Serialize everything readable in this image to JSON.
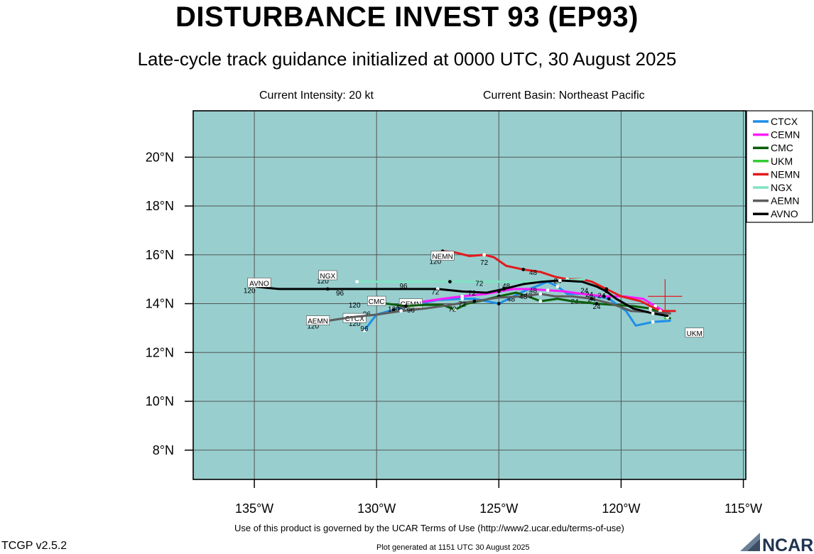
{
  "header": {
    "title": "DISTURBANCE INVEST 93 (EP93)",
    "subtitle": "Late-cycle track guidance initialized at 0000 UTC, 30 August 2025",
    "intensity": "Current Intensity: 20 kt",
    "basin": "Current Basin: Northeast Pacific"
  },
  "footer": {
    "terms": "Use of this product is governed by the UCAR Terms of Use (http://www2.ucar.edu/terms-of-use)",
    "version": "TCGP v2.5.2",
    "generated": "Plot generated at 1151 UTC   30 August 2025",
    "logo": "NCAR"
  },
  "colors": {
    "ocean": "#98cece",
    "grid": "#555555",
    "storm_marker": "#e31a1c"
  },
  "chart_data": {
    "type": "line",
    "x_axis": {
      "range": [
        -137.5,
        -114.9
      ],
      "ticks": [
        -135,
        -130,
        -125,
        -120,
        -115
      ],
      "tick_labels": [
        "135°W",
        "130°W",
        "125°W",
        "120°W",
        "115°W"
      ]
    },
    "y_axis": {
      "range": [
        6.8,
        21.9
      ],
      "ticks": [
        8,
        10,
        12,
        14,
        16,
        18,
        20
      ],
      "tick_labels": [
        "8°N",
        "10°N",
        "12°N",
        "14°N",
        "16°N",
        "18°N",
        "20°N"
      ]
    },
    "grid": true,
    "legend_position": "top-right",
    "current_position": {
      "lon": -118.2,
      "lat": 14.3
    },
    "series": [
      {
        "name": "CTCX",
        "color": "#1e8ee8",
        "label_lon": -130.9,
        "label_lat": 13.4,
        "points": [
          [
            -118.0,
            13.3
          ],
          [
            -118.7,
            13.25
          ],
          [
            -119.4,
            13.1
          ],
          [
            -119.8,
            13.7
          ],
          [
            -120.5,
            14.2
          ],
          [
            -121.5,
            14.4
          ],
          [
            -122.2,
            14.4
          ],
          [
            -122.6,
            14.7
          ],
          [
            -123.0,
            14.9
          ],
          [
            -124.0,
            14.5
          ],
          [
            -125.0,
            14.0
          ],
          [
            -125.5,
            14.1
          ],
          [
            -126.0,
            14.2
          ],
          [
            -126.5,
            14.2
          ],
          [
            -127.5,
            14.15
          ],
          [
            -128.5,
            13.95
          ],
          [
            -129.3,
            13.75
          ],
          [
            -130.0,
            13.55
          ],
          [
            -130.2,
            13.3
          ],
          [
            -130.5,
            12.9
          ]
        ],
        "tau": [
          {
            "lon": -121.9,
            "lat": 14.1,
            "t": "24"
          },
          {
            "lon": -124.5,
            "lat": 14.2,
            "t": "48"
          },
          {
            "lon": -130.4,
            "lat": 13.6,
            "t": "96"
          },
          {
            "lon": -130.5,
            "lat": 13.0,
            "t": "96"
          },
          {
            "lon": -130.9,
            "lat": 13.2,
            "t": "120"
          }
        ]
      },
      {
        "name": "CEMN",
        "color": "#ff1aff",
        "label_lon": -128.6,
        "label_lat": 14.0,
        "points": [
          [
            -118.1,
            13.6
          ],
          [
            -118.6,
            13.9
          ],
          [
            -119.1,
            14.2
          ],
          [
            -119.9,
            14.3
          ],
          [
            -120.7,
            14.3
          ],
          [
            -121.6,
            14.4
          ],
          [
            -122.3,
            14.5
          ],
          [
            -123.0,
            14.55
          ],
          [
            -123.8,
            14.6
          ],
          [
            -124.4,
            14.6
          ],
          [
            -125.0,
            14.5
          ],
          [
            -125.5,
            14.4
          ],
          [
            -126.0,
            14.35
          ],
          [
            -126.5,
            14.3
          ],
          [
            -127.3,
            14.2
          ],
          [
            -128.0,
            14.1
          ],
          [
            -128.5,
            14.0
          ],
          [
            -129.0,
            13.9
          ]
        ],
        "tau": [
          {
            "lon": -121.3,
            "lat": 14.4,
            "t": "24"
          },
          {
            "lon": -123.6,
            "lat": 14.55,
            "t": "48"
          },
          {
            "lon": -126.1,
            "lat": 14.45,
            "t": "72"
          },
          {
            "lon": -128.5,
            "lat": 14.0,
            "t": "96"
          },
          {
            "lon": -129.3,
            "lat": 13.8,
            "t": "120"
          }
        ]
      },
      {
        "name": "CMC",
        "color": "#0b5e0b",
        "label_lon": -130.0,
        "label_lat": 14.1,
        "points": [
          [
            -118.0,
            13.4
          ],
          [
            -118.8,
            13.8
          ],
          [
            -119.5,
            13.9
          ],
          [
            -120.3,
            13.95
          ],
          [
            -121.0,
            14.0
          ],
          [
            -122.0,
            14.1
          ],
          [
            -122.6,
            14.2
          ],
          [
            -123.3,
            14.1
          ],
          [
            -123.8,
            14.3
          ],
          [
            -124.3,
            14.45
          ],
          [
            -125.0,
            14.3
          ],
          [
            -125.6,
            14.15
          ],
          [
            -126.3,
            14.0
          ],
          [
            -126.8,
            13.75
          ],
          [
            -127.3,
            13.95
          ],
          [
            -128.0,
            13.95
          ],
          [
            -128.8,
            13.9
          ],
          [
            -129.6,
            14.0
          ],
          [
            -130.3,
            14.05
          ]
        ],
        "tau": [
          {
            "lon": -121.0,
            "lat": 13.9,
            "t": "24"
          },
          {
            "lon": -123.8,
            "lat": 14.35,
            "t": "48"
          },
          {
            "lon": -126.9,
            "lat": 13.8,
            "t": "72"
          },
          {
            "lon": -129.0,
            "lat": 13.85,
            "t": "96"
          },
          {
            "lon": -130.9,
            "lat": 13.95,
            "t": "120"
          }
        ]
      },
      {
        "name": "UKM",
        "color": "#33cc33",
        "label_lon": -117.0,
        "label_lat": 12.8,
        "points": [
          [
            -118.2,
            13.4
          ],
          [
            -118.1,
            13.45
          ]
        ],
        "tau": []
      },
      {
        "name": "NEMN",
        "color": "#e31a1c",
        "label_lon": -127.3,
        "label_lat": 15.95,
        "points": [
          [
            -117.8,
            13.7
          ],
          [
            -118.4,
            13.7
          ],
          [
            -119.2,
            14.1
          ],
          [
            -120.0,
            14.3
          ],
          [
            -120.6,
            14.6
          ],
          [
            -121.2,
            14.9
          ],
          [
            -121.6,
            15.0
          ],
          [
            -122.2,
            15.0
          ],
          [
            -122.7,
            15.1
          ],
          [
            -123.3,
            15.3
          ],
          [
            -124.0,
            15.4
          ],
          [
            -124.7,
            15.55
          ],
          [
            -125.2,
            15.9
          ],
          [
            -125.6,
            16.0
          ],
          [
            -126.2,
            15.95
          ],
          [
            -126.8,
            16.1
          ],
          [
            -127.3,
            16.15
          ],
          [
            -127.6,
            15.9
          ]
        ],
        "tau": [
          {
            "lon": -120.8,
            "lat": 14.35,
            "t": "24"
          },
          {
            "lon": -123.6,
            "lat": 15.3,
            "t": "48"
          },
          {
            "lon": -125.6,
            "lat": 15.7,
            "t": "72"
          },
          {
            "lon": -127.6,
            "lat": 15.75,
            "t": "120"
          }
        ]
      },
      {
        "name": "NGX",
        "color": "#7fe3c3",
        "label_lon": -132.0,
        "label_lat": 15.15,
        "points": [
          [
            -121.5,
            15.0
          ],
          [
            -122.5,
            14.95
          ],
          [
            -124.0,
            14.9
          ],
          [
            -125.5,
            14.9
          ],
          [
            -127.0,
            14.9
          ],
          [
            -128.5,
            14.9
          ],
          [
            -130.0,
            14.9
          ],
          [
            -130.8,
            14.9
          ]
        ],
        "tau": [
          {
            "lon": -122.6,
            "lat": 14.95,
            "t": "24"
          },
          {
            "lon": -125.8,
            "lat": 14.85,
            "t": "72"
          },
          {
            "lon": -128.9,
            "lat": 14.75,
            "t": "96"
          },
          {
            "lon": -132.2,
            "lat": 14.95,
            "t": "120"
          }
        ]
      },
      {
        "name": "AEMN",
        "color": "#5c5c5c",
        "label_lon": -132.4,
        "label_lat": 13.3,
        "points": [
          [
            -118.0,
            13.6
          ],
          [
            -118.8,
            13.65
          ],
          [
            -119.6,
            13.7
          ],
          [
            -120.4,
            14.0
          ],
          [
            -121.2,
            14.2
          ],
          [
            -122.0,
            14.3
          ],
          [
            -122.7,
            14.3
          ],
          [
            -123.3,
            14.4
          ],
          [
            -124.0,
            14.3
          ],
          [
            -125.0,
            14.25
          ],
          [
            -126.0,
            14.1
          ],
          [
            -127.0,
            13.95
          ],
          [
            -128.0,
            13.8
          ],
          [
            -129.0,
            13.7
          ],
          [
            -130.0,
            13.55
          ],
          [
            -131.0,
            13.45
          ],
          [
            -132.0,
            13.3
          ],
          [
            -132.5,
            13.2
          ]
        ],
        "tau": [
          {
            "lon": -121.2,
            "lat": 14.2,
            "t": "24"
          },
          {
            "lon": -124.0,
            "lat": 14.3,
            "t": "48"
          },
          {
            "lon": -126.5,
            "lat": 14.0,
            "t": "72"
          },
          {
            "lon": -128.6,
            "lat": 13.75,
            "t": "96"
          },
          {
            "lon": -132.6,
            "lat": 13.1,
            "t": "120"
          }
        ]
      },
      {
        "name": "AVNO",
        "color": "#000000",
        "label_lon": -134.8,
        "label_lat": 14.85,
        "points": [
          [
            -118.1,
            13.5
          ],
          [
            -118.7,
            13.6
          ],
          [
            -119.5,
            13.8
          ],
          [
            -120.2,
            14.2
          ],
          [
            -120.6,
            14.5
          ],
          [
            -121.0,
            14.7
          ],
          [
            -121.6,
            14.9
          ],
          [
            -122.5,
            14.95
          ],
          [
            -123.2,
            14.9
          ],
          [
            -124.0,
            14.8
          ],
          [
            -124.8,
            14.6
          ],
          [
            -125.5,
            14.45
          ],
          [
            -126.5,
            14.5
          ],
          [
            -127.5,
            14.6
          ],
          [
            -129.0,
            14.6
          ],
          [
            -130.5,
            14.6
          ],
          [
            -132.0,
            14.6
          ],
          [
            -133.0,
            14.6
          ],
          [
            -134.0,
            14.6
          ],
          [
            -135.0,
            14.7
          ]
        ],
        "tau": [
          {
            "lon": -121.5,
            "lat": 14.55,
            "t": "24"
          },
          {
            "lon": -124.7,
            "lat": 14.75,
            "t": "48"
          },
          {
            "lon": -127.6,
            "lat": 14.5,
            "t": "72"
          },
          {
            "lon": -131.5,
            "lat": 14.45,
            "t": "96"
          },
          {
            "lon": -135.2,
            "lat": 14.55,
            "t": "120"
          }
        ]
      }
    ]
  }
}
